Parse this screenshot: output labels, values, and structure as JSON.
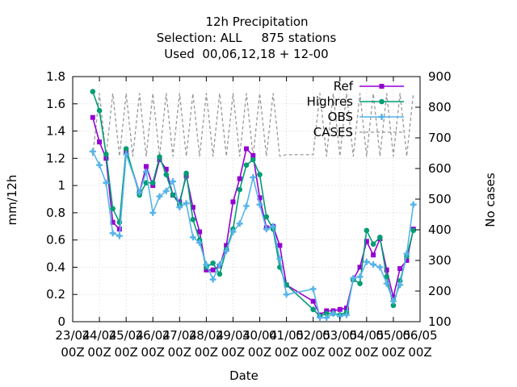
{
  "chart_data": {
    "type": "line",
    "title": "12h Precipitation",
    "subtitle": "Selection: ALL     875 stations",
    "subtitle2": "Used  00,06,12,18 + 12-00",
    "xlabel": "Date",
    "ylabel": "mm/12h",
    "y2label": "No cases",
    "xlim": [
      0,
      26
    ],
    "ylim": [
      0,
      1.8
    ],
    "y2lim": [
      100,
      900
    ],
    "xticks": [
      {
        "x": 0,
        "line1": "23/04",
        "line2": "00Z"
      },
      {
        "x": 2,
        "line1": "24/04",
        "line2": "00Z"
      },
      {
        "x": 4,
        "line1": "25/04",
        "line2": "00Z"
      },
      {
        "x": 6,
        "line1": "26/04",
        "line2": "00Z"
      },
      {
        "x": 8,
        "line1": "27/04",
        "line2": "00Z"
      },
      {
        "x": 10,
        "line1": "28/04",
        "line2": "00Z"
      },
      {
        "x": 12,
        "line1": "29/04",
        "line2": "00Z"
      },
      {
        "x": 14,
        "line1": "30/04",
        "line2": "00Z"
      },
      {
        "x": 16,
        "line1": "01/05",
        "line2": "00Z"
      },
      {
        "x": 18,
        "line1": "02/05",
        "line2": "00Z"
      },
      {
        "x": 20,
        "line1": "03/05",
        "line2": "00Z"
      },
      {
        "x": 22,
        "line1": "04/05",
        "line2": "00Z"
      },
      {
        "x": 24,
        "line1": "05/05",
        "line2": "00Z"
      },
      {
        "x": 26,
        "line1": "06/05",
        "line2": "00Z"
      }
    ],
    "yticks": [
      "0",
      "0.2",
      "0.4",
      "0.6",
      "0.8",
      "1",
      "1.2",
      "1.4",
      "1.6",
      "1.8"
    ],
    "y2ticks": [
      "100",
      "200",
      "300",
      "400",
      "500",
      "600",
      "700",
      "800",
      "900"
    ],
    "legend_position": "top-right",
    "series": [
      {
        "name": "Ref",
        "color": "#9400d3",
        "marker": "square",
        "axis": "y",
        "points": [
          [
            1.5,
            1.5
          ],
          [
            2.0,
            1.32
          ],
          [
            2.5,
            1.2
          ],
          [
            3.0,
            0.73
          ],
          [
            3.5,
            0.68
          ],
          [
            4.0,
            1.25
          ],
          [
            5.0,
            0.95
          ],
          [
            5.5,
            1.14
          ],
          [
            6.0,
            1.0
          ],
          [
            6.5,
            1.19
          ],
          [
            7.0,
            1.12
          ],
          [
            7.5,
            0.93
          ],
          [
            8.0,
            0.88
          ],
          [
            8.5,
            1.07
          ],
          [
            9.0,
            0.84
          ],
          [
            9.5,
            0.66
          ],
          [
            10.0,
            0.38
          ],
          [
            10.5,
            0.38
          ],
          [
            11.0,
            0.41
          ],
          [
            11.5,
            0.56
          ],
          [
            12.0,
            0.88
          ],
          [
            12.5,
            1.05
          ],
          [
            13.0,
            1.27
          ],
          [
            13.5,
            1.22
          ],
          [
            14.0,
            0.91
          ],
          [
            14.5,
            0.69
          ],
          [
            15.0,
            0.7
          ],
          [
            15.5,
            0.56
          ],
          [
            16.0,
            0.27
          ],
          [
            18.0,
            0.15
          ],
          [
            18.5,
            0.05
          ],
          [
            19.0,
            0.08
          ],
          [
            19.5,
            0.08
          ],
          [
            20.0,
            0.09
          ],
          [
            20.5,
            0.1
          ],
          [
            21.0,
            0.31
          ],
          [
            21.5,
            0.4
          ],
          [
            22.0,
            0.59
          ],
          [
            22.5,
            0.49
          ],
          [
            23.0,
            0.61
          ],
          [
            23.5,
            0.38
          ],
          [
            24.0,
            0.18
          ],
          [
            24.5,
            0.39
          ],
          [
            25.0,
            0.45
          ],
          [
            25.5,
            0.68
          ]
        ]
      },
      {
        "name": "Highres",
        "color": "#009e73",
        "marker": "circle",
        "axis": "y",
        "points": [
          [
            1.5,
            1.69
          ],
          [
            2.0,
            1.55
          ],
          [
            2.5,
            1.23
          ],
          [
            3.0,
            0.83
          ],
          [
            3.5,
            0.73
          ],
          [
            4.0,
            1.27
          ],
          [
            5.0,
            0.93
          ],
          [
            5.5,
            1.02
          ],
          [
            6.0,
            1.02
          ],
          [
            6.5,
            1.21
          ],
          [
            7.0,
            1.08
          ],
          [
            7.5,
            0.93
          ],
          [
            8.0,
            0.86
          ],
          [
            8.5,
            1.09
          ],
          [
            9.0,
            0.75
          ],
          [
            9.5,
            0.6
          ],
          [
            10.0,
            0.4
          ],
          [
            10.5,
            0.43
          ],
          [
            11.0,
            0.35
          ],
          [
            11.5,
            0.53
          ],
          [
            12.0,
            0.68
          ],
          [
            12.5,
            0.97
          ],
          [
            13.0,
            1.15
          ],
          [
            13.5,
            1.19
          ],
          [
            14.0,
            1.08
          ],
          [
            14.5,
            0.77
          ],
          [
            15.0,
            0.68
          ],
          [
            15.5,
            0.4
          ],
          [
            16.0,
            0.27
          ],
          [
            18.0,
            0.09
          ],
          [
            18.5,
            0.04
          ],
          [
            19.0,
            0.06
          ],
          [
            19.5,
            0.06
          ],
          [
            20.0,
            0.05
          ],
          [
            20.5,
            0.07
          ],
          [
            21.0,
            0.31
          ],
          [
            21.5,
            0.28
          ],
          [
            22.0,
            0.67
          ],
          [
            22.5,
            0.57
          ],
          [
            23.0,
            0.62
          ],
          [
            23.5,
            0.33
          ],
          [
            24.0,
            0.12
          ],
          [
            24.5,
            0.3
          ],
          [
            25.0,
            0.48
          ],
          [
            25.5,
            0.67
          ]
        ]
      },
      {
        "name": "OBS",
        "color": "#56b4e9",
        "marker": "plus",
        "axis": "y",
        "points": [
          [
            1.5,
            1.25
          ],
          [
            2.0,
            1.15
          ],
          [
            2.5,
            1.02
          ],
          [
            3.0,
            0.65
          ],
          [
            3.5,
            0.63
          ],
          [
            4.0,
            1.23
          ],
          [
            5.0,
            0.95
          ],
          [
            5.5,
            1.1
          ],
          [
            6.0,
            0.8
          ],
          [
            6.5,
            0.92
          ],
          [
            7.0,
            0.96
          ],
          [
            7.5,
            1.03
          ],
          [
            8.0,
            0.84
          ],
          [
            8.5,
            0.87
          ],
          [
            9.0,
            0.62
          ],
          [
            9.5,
            0.58
          ],
          [
            10.0,
            0.42
          ],
          [
            10.5,
            0.31
          ],
          [
            11.0,
            0.42
          ],
          [
            11.5,
            0.52
          ],
          [
            12.0,
            0.66
          ],
          [
            12.5,
            0.72
          ],
          [
            13.0,
            0.85
          ],
          [
            13.5,
            1.06
          ],
          [
            14.0,
            0.86
          ],
          [
            14.5,
            0.68
          ],
          [
            15.0,
            0.7
          ],
          [
            15.5,
            0.46
          ],
          [
            16.0,
            0.2
          ],
          [
            18.0,
            0.24
          ],
          [
            18.5,
            0.03
          ],
          [
            19.0,
            0.03
          ],
          [
            19.5,
            0.06
          ],
          [
            20.0,
            0.04
          ],
          [
            20.5,
            0.05
          ],
          [
            21.0,
            0.32
          ],
          [
            21.5,
            0.33
          ],
          [
            22.0,
            0.44
          ],
          [
            22.5,
            0.42
          ],
          [
            23.0,
            0.4
          ],
          [
            23.5,
            0.28
          ],
          [
            24.0,
            0.15
          ],
          [
            24.5,
            0.27
          ],
          [
            25.0,
            0.5
          ],
          [
            25.5,
            0.86
          ]
        ]
      },
      {
        "name": "CASES",
        "color": "#999999",
        "marker": "none",
        "dashed": true,
        "axis": "y2",
        "points": [
          [
            1.5,
            640
          ],
          [
            2.0,
            845
          ],
          [
            2.5,
            640
          ],
          [
            3.0,
            845
          ],
          [
            3.5,
            640
          ],
          [
            4.0,
            845
          ],
          [
            4.5,
            640
          ],
          [
            5.0,
            845
          ],
          [
            5.5,
            640
          ],
          [
            6.0,
            845
          ],
          [
            6.5,
            640
          ],
          [
            7.0,
            845
          ],
          [
            7.5,
            640
          ],
          [
            8.0,
            845
          ],
          [
            8.5,
            640
          ],
          [
            9.0,
            845
          ],
          [
            9.5,
            640
          ],
          [
            10.0,
            845
          ],
          [
            10.5,
            640
          ],
          [
            11.0,
            845
          ],
          [
            11.5,
            640
          ],
          [
            12.0,
            845
          ],
          [
            12.5,
            640
          ],
          [
            13.0,
            845
          ],
          [
            13.5,
            640
          ],
          [
            14.0,
            845
          ],
          [
            14.5,
            640
          ],
          [
            15.0,
            845
          ],
          [
            15.5,
            640
          ],
          [
            16.0,
            645
          ],
          [
            18.0,
            645
          ],
          [
            18.5,
            845
          ],
          [
            19.0,
            640
          ],
          [
            19.5,
            845
          ],
          [
            20.0,
            640
          ],
          [
            20.5,
            845
          ],
          [
            21.0,
            640
          ],
          [
            21.5,
            845
          ],
          [
            22.0,
            640
          ],
          [
            22.5,
            845
          ],
          [
            23.0,
            640
          ],
          [
            23.5,
            845
          ],
          [
            24.0,
            640
          ],
          [
            24.5,
            845
          ],
          [
            25.0,
            640
          ],
          [
            25.5,
            845
          ]
        ]
      }
    ]
  }
}
